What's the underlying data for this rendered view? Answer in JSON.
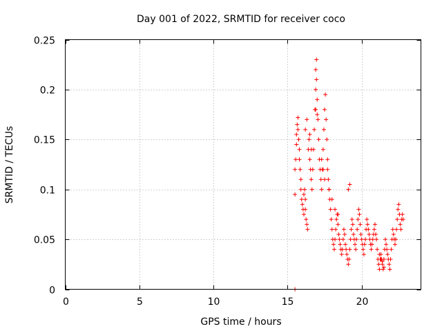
{
  "chart_data": {
    "type": "scatter",
    "title": "Day 001 of 2022, SRMTID for receiver coco",
    "xlabel": "GPS time / hours",
    "ylabel": "SRMTID / TECUs",
    "xlim": [
      0,
      24
    ],
    "ylim": [
      0,
      0.25
    ],
    "x_ticks": [
      0,
      5,
      10,
      15,
      20
    ],
    "x_tick_labels": [
      "0",
      "5",
      "10",
      "15",
      "20"
    ],
    "y_ticks": [
      0,
      0.05,
      0.1,
      0.15,
      0.2,
      0.25
    ],
    "y_tick_labels": [
      "0",
      "0.05",
      "0.1",
      "0.15",
      "0.2",
      "0.25"
    ],
    "grid": true,
    "marker": "+",
    "color": "#ff0000",
    "series": [
      {
        "name": "SRMTID",
        "x": [
          15.5,
          15.5,
          15.5,
          15.55,
          15.6,
          15.6,
          15.65,
          15.7,
          15.7,
          15.75,
          15.8,
          15.8,
          15.85,
          15.9,
          15.9,
          15.95,
          16.0,
          16.05,
          16.1,
          16.1,
          16.15,
          16.2,
          16.2,
          16.25,
          16.3,
          16.35,
          16.4,
          16.45,
          16.5,
          16.55,
          16.6,
          16.65,
          16.7,
          16.75,
          16.8,
          16.85,
          16.9,
          16.9,
          16.95,
          17.0,
          17.05,
          17.1,
          17.15,
          17.2,
          17.25,
          17.3,
          17.35,
          17.4,
          17.45,
          17.5,
          17.55,
          17.6,
          17.65,
          17.7,
          17.75,
          17.8,
          17.85,
          17.9,
          17.95,
          18.0,
          18.05,
          18.1,
          18.15,
          18.2,
          18.25,
          18.3,
          18.35,
          18.4,
          18.45,
          18.5,
          18.55,
          18.6,
          18.65,
          18.7,
          18.75,
          18.8,
          18.85,
          18.9,
          18.95,
          19.0,
          19.05,
          19.1,
          19.15,
          19.2,
          19.25,
          19.3,
          19.35,
          19.4,
          19.45,
          19.5,
          19.55,
          19.6,
          19.65,
          19.7,
          19.75,
          19.8,
          19.85,
          19.9,
          19.95,
          20.0,
          20.05,
          20.1,
          20.15,
          20.2,
          20.25,
          20.3,
          20.35,
          20.4,
          20.45,
          20.5,
          20.55,
          20.6,
          20.65,
          20.7,
          20.75,
          20.8,
          20.85,
          20.9,
          20.95,
          21.0,
          21.05,
          21.1,
          21.15,
          21.2,
          21.25,
          21.3,
          21.35,
          21.4,
          21.45,
          21.5,
          21.55,
          21.6,
          21.65,
          21.7,
          21.75,
          21.8,
          21.85,
          21.9,
          21.95,
          22.0,
          22.05,
          22.1,
          22.15,
          22.2,
          22.25,
          22.3,
          22.35,
          22.4,
          22.45,
          22.5,
          22.55,
          22.6,
          22.65,
          22.7,
          22.75,
          22.8,
          16.9,
          16.95,
          17.0,
          16.2,
          16.3,
          16.5,
          16.6,
          17.3,
          17.4,
          17.5,
          17.7,
          17.8,
          18.0,
          18.2,
          18.4,
          19.1,
          19.2,
          21.2,
          21.3,
          21.4,
          21.5
        ],
        "y": [
          0.0,
          0.095,
          0.12,
          0.13,
          0.145,
          0.155,
          0.165,
          0.172,
          0.16,
          0.15,
          0.14,
          0.13,
          0.12,
          0.11,
          0.1,
          0.09,
          0.085,
          0.08,
          0.075,
          0.095,
          0.1,
          0.09,
          0.08,
          0.07,
          0.065,
          0.06,
          0.14,
          0.15,
          0.13,
          0.12,
          0.11,
          0.1,
          0.12,
          0.14,
          0.16,
          0.18,
          0.2,
          0.22,
          0.23,
          0.19,
          0.17,
          0.15,
          0.13,
          0.12,
          0.11,
          0.1,
          0.12,
          0.14,
          0.16,
          0.18,
          0.195,
          0.17,
          0.15,
          0.13,
          0.11,
          0.1,
          0.09,
          0.08,
          0.07,
          0.06,
          0.05,
          0.045,
          0.04,
          0.05,
          0.06,
          0.07,
          0.075,
          0.065,
          0.055,
          0.05,
          0.045,
          0.04,
          0.035,
          0.04,
          0.05,
          0.06,
          0.055,
          0.045,
          0.04,
          0.035,
          0.03,
          0.025,
          0.03,
          0.04,
          0.05,
          0.06,
          0.07,
          0.065,
          0.055,
          0.05,
          0.045,
          0.04,
          0.05,
          0.06,
          0.07,
          0.08,
          0.075,
          0.065,
          0.055,
          0.05,
          0.045,
          0.04,
          0.035,
          0.045,
          0.05,
          0.06,
          0.07,
          0.065,
          0.06,
          0.055,
          0.05,
          0.045,
          0.04,
          0.045,
          0.05,
          0.055,
          0.06,
          0.065,
          0.055,
          0.05,
          0.04,
          0.03,
          0.025,
          0.02,
          0.03,
          0.035,
          0.03,
          0.025,
          0.02,
          0.03,
          0.04,
          0.05,
          0.045,
          0.04,
          0.035,
          0.03,
          0.025,
          0.02,
          0.03,
          0.04,
          0.05,
          0.06,
          0.055,
          0.05,
          0.045,
          0.05,
          0.06,
          0.07,
          0.08,
          0.085,
          0.075,
          0.065,
          0.06,
          0.07,
          0.075,
          0.07,
          0.18,
          0.21,
          0.175,
          0.16,
          0.17,
          0.155,
          0.14,
          0.13,
          0.12,
          0.11,
          0.12,
          0.1,
          0.09,
          0.08,
          0.075,
          0.1,
          0.105,
          0.035,
          0.03,
          0.028,
          0.022
        ]
      }
    ]
  }
}
